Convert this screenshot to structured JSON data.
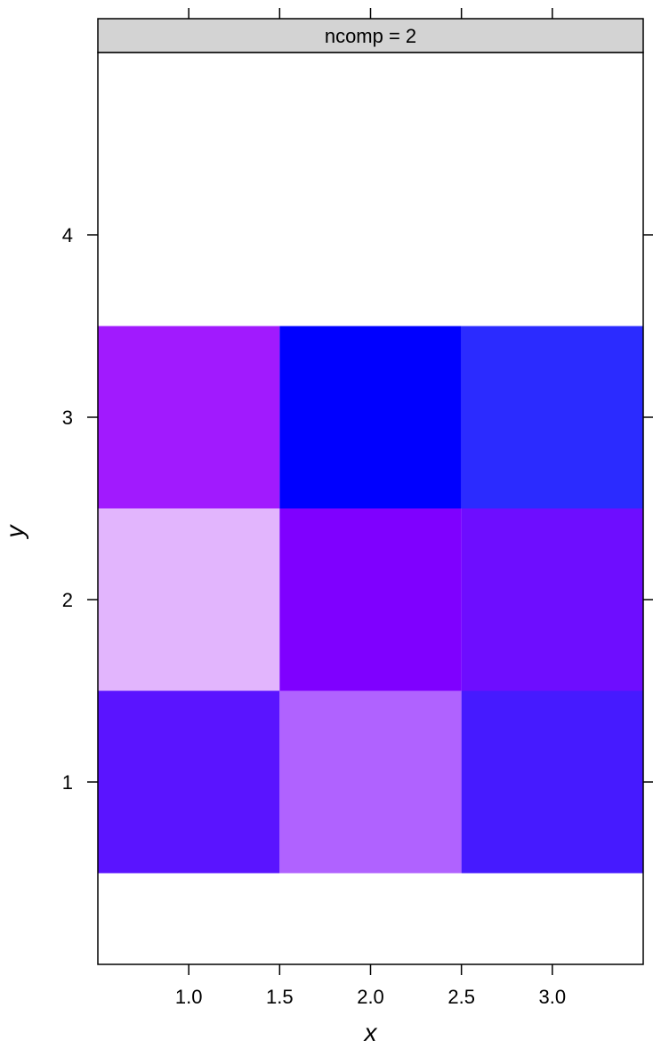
{
  "chart_data": {
    "type": "heatmap",
    "panel_title": "ncomp = 2",
    "xlabel": "x",
    "ylabel": "y",
    "xlim": [
      0.5,
      3.5
    ],
    "ylim": [
      0,
      5
    ],
    "x_ticks": [
      1.0,
      1.5,
      2.0,
      2.5,
      3.0
    ],
    "x_tick_labels": [
      "1.0",
      "1.5",
      "2.0",
      "2.5",
      "3.0"
    ],
    "y_ticks": [
      1,
      2,
      3,
      4
    ],
    "y_tick_labels": [
      "1",
      "2",
      "3",
      "4"
    ],
    "grid": false,
    "cells": [
      {
        "x": 1,
        "y": 1,
        "color": "#5a14ff"
      },
      {
        "x": 2,
        "y": 1,
        "color": "#b062ff"
      },
      {
        "x": 3,
        "y": 1,
        "color": "#461aff"
      },
      {
        "x": 1,
        "y": 2,
        "color": "#e2b5fd"
      },
      {
        "x": 2,
        "y": 2,
        "color": "#7f00ff"
      },
      {
        "x": 3,
        "y": 2,
        "color": "#6e0dff"
      },
      {
        "x": 1,
        "y": 3,
        "color": "#a11afe"
      },
      {
        "x": 2,
        "y": 3,
        "color": "#0000ff"
      },
      {
        "x": 3,
        "y": 3,
        "color": "#2b2bff"
      }
    ],
    "colors": {
      "strip_fill": "#d3d3d3",
      "axis": "#000000",
      "background": "#ffffff"
    }
  }
}
